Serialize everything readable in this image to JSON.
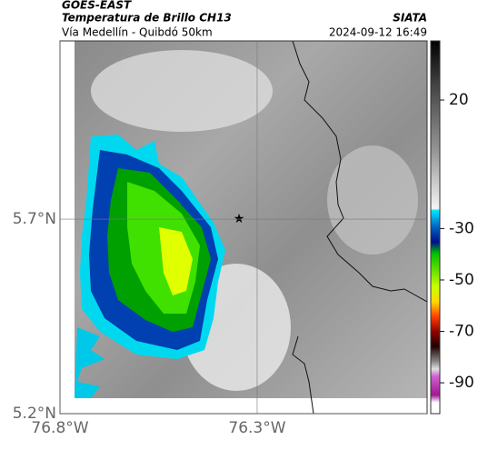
{
  "header": {
    "satellite": "GOES-EAST",
    "product": "Temperatura de Brillo CH13",
    "region": "Vía Medellín - Quibdó 50km",
    "source": "SIATA",
    "timestamp": "2024-09-12 16:49"
  },
  "map": {
    "lon_lim": [
      -76.8,
      -75.869
    ],
    "lat_lim": [
      5.2,
      6.158
    ],
    "lon_ticks": [
      {
        "value": -76.8,
        "label": "76.8°W"
      },
      {
        "value": -76.3,
        "label": "76.3°W"
      }
    ],
    "lat_ticks": [
      {
        "value": 5.7,
        "label": "5.7°N"
      },
      {
        "value": 5.2,
        "label": "5.2°N"
      }
    ],
    "grid": true
  },
  "colorbar": {
    "lim": [
      -102,
      43
    ],
    "ticks": [
      20,
      -30,
      -50,
      -70,
      -90
    ]
  }
}
